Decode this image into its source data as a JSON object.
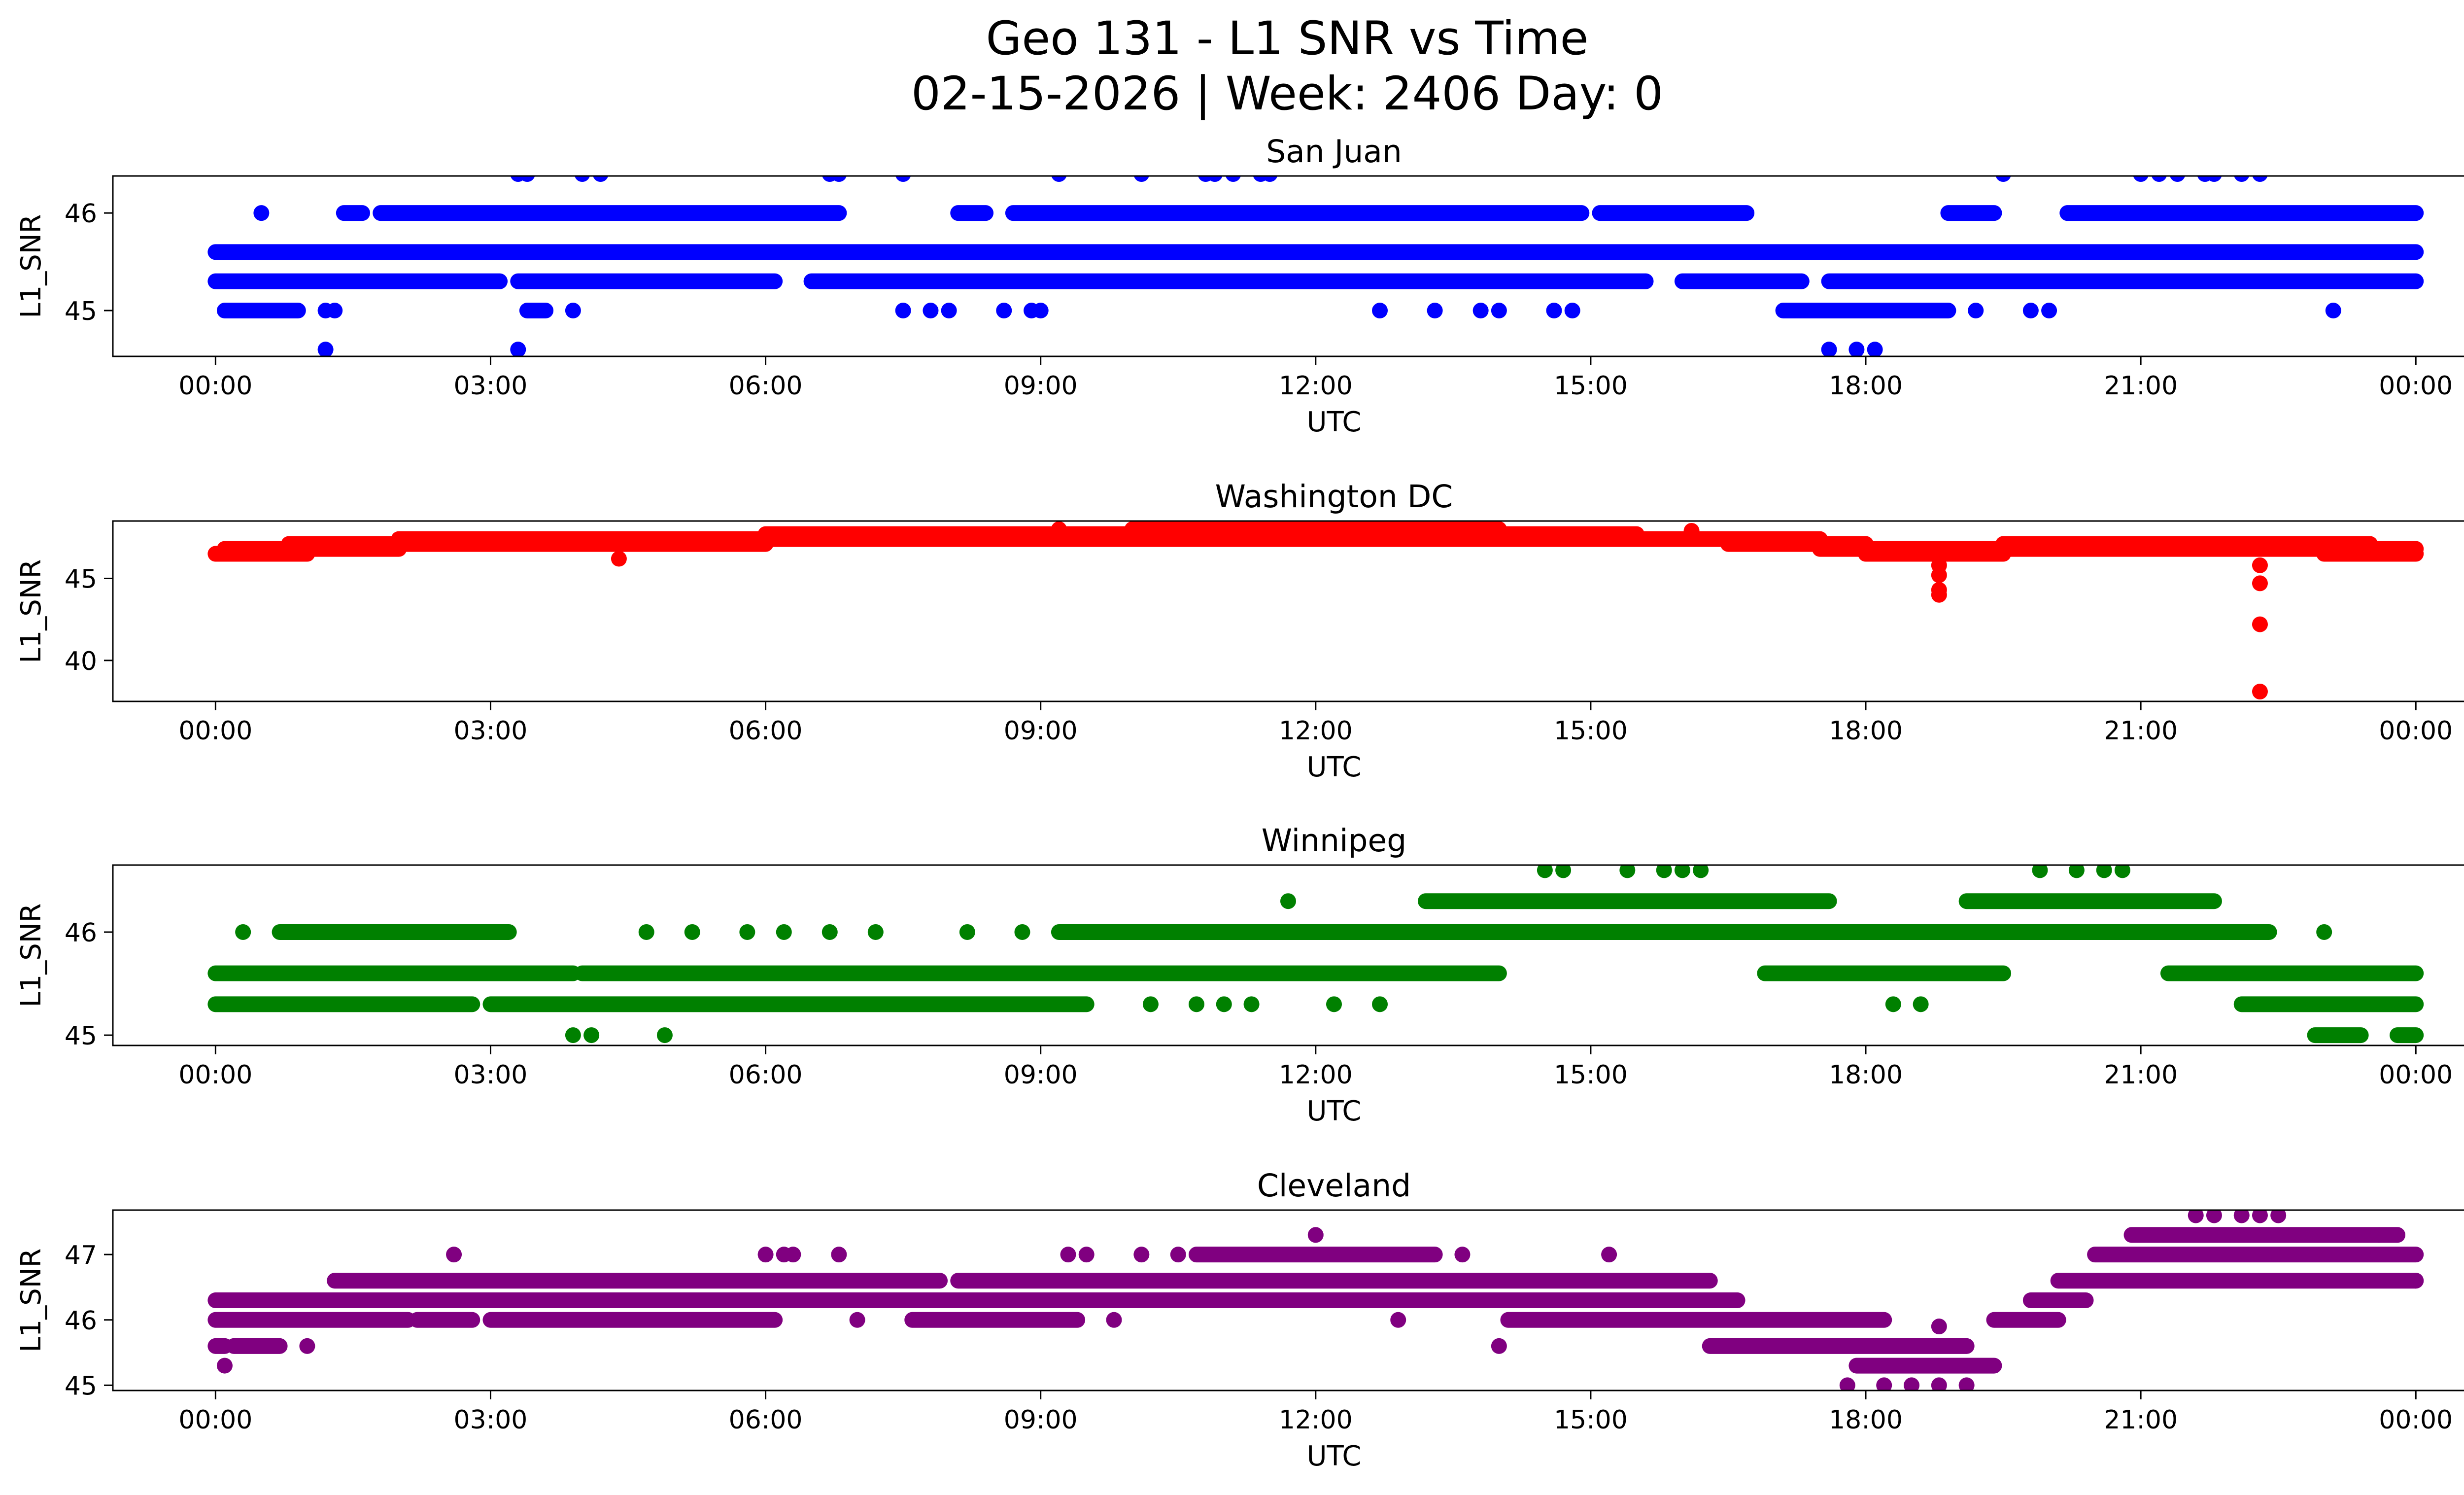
{
  "figure": {
    "title_line1": "Geo 131 - L1 SNR vs Time",
    "title_line2": "02-15-2026 | Week: 2406 Day: 0"
  },
  "chart_data": [
    {
      "type": "scatter",
      "title": "San Juan",
      "xlabel": "UTC",
      "ylabel": "L1_SNR",
      "color": "#0000ff",
      "xlim": [
        -1.12,
        25.52
      ],
      "ylim": [
        44.53,
        46.38
      ],
      "xticks": [
        0,
        3,
        6,
        9,
        12,
        15,
        18,
        21,
        24
      ],
      "xtick_labels": [
        "00:00",
        "03:00",
        "06:00",
        "09:00",
        "12:00",
        "15:00",
        "18:00",
        "21:00",
        "00:00"
      ],
      "yticks": [
        45,
        46
      ],
      "yticks_labels": [
        "45",
        "46"
      ],
      "bands": [
        {
          "y": 45.6,
          "segments": [
            [
              0,
              24
            ]
          ]
        },
        {
          "y": 45.3,
          "segments": [
            [
              0,
              3.1
            ],
            [
              3.3,
              6.1
            ],
            [
              6.5,
              15.6
            ],
            [
              16.0,
              17.3
            ],
            [
              17.6,
              24
            ]
          ]
        },
        {
          "y": 46.0,
          "segments": [
            [
              1.4,
              1.6
            ],
            [
              1.8,
              6.8
            ],
            [
              8.1,
              8.4
            ],
            [
              8.7,
              14.9
            ],
            [
              15.1,
              16.7
            ],
            [
              18.9,
              19.4
            ],
            [
              20.2,
              24
            ]
          ]
        },
        {
          "y": 45.0,
          "segments": [
            [
              0.1,
              0.9
            ],
            [
              3.4,
              3.6
            ],
            [
              17.1,
              18.9
            ]
          ]
        }
      ],
      "points": [
        {
          "x": 0.5,
          "y": 46.0
        },
        {
          "x": 1.2,
          "y": 45.0
        },
        {
          "x": 1.3,
          "y": 45.0
        },
        {
          "x": 1.2,
          "y": 44.6
        },
        {
          "x": 3.3,
          "y": 44.6
        },
        {
          "x": 3.3,
          "y": 46.4
        },
        {
          "x": 3.4,
          "y": 46.4
        },
        {
          "x": 3.9,
          "y": 45.0
        },
        {
          "x": 4.0,
          "y": 46.4
        },
        {
          "x": 4.2,
          "y": 46.4
        },
        {
          "x": 6.7,
          "y": 46.4
        },
        {
          "x": 6.8,
          "y": 46.4
        },
        {
          "x": 7.5,
          "y": 46.4
        },
        {
          "x": 7.5,
          "y": 45.0
        },
        {
          "x": 7.8,
          "y": 45.0
        },
        {
          "x": 8.0,
          "y": 45.0
        },
        {
          "x": 8.6,
          "y": 45.0
        },
        {
          "x": 8.9,
          "y": 45.0
        },
        {
          "x": 9.0,
          "y": 45.0
        },
        {
          "x": 9.2,
          "y": 46.4
        },
        {
          "x": 10.1,
          "y": 46.4
        },
        {
          "x": 10.8,
          "y": 46.4
        },
        {
          "x": 10.9,
          "y": 46.4
        },
        {
          "x": 11.1,
          "y": 46.4
        },
        {
          "x": 11.4,
          "y": 46.4
        },
        {
          "x": 11.5,
          "y": 46.4
        },
        {
          "x": 12.7,
          "y": 45.0
        },
        {
          "x": 13.3,
          "y": 45.0
        },
        {
          "x": 13.8,
          "y": 45.0
        },
        {
          "x": 14.0,
          "y": 45.0
        },
        {
          "x": 14.6,
          "y": 45.0
        },
        {
          "x": 14.8,
          "y": 45.0
        },
        {
          "x": 17.6,
          "y": 44.6
        },
        {
          "x": 17.9,
          "y": 44.6
        },
        {
          "x": 18.1,
          "y": 44.6
        },
        {
          "x": 19.2,
          "y": 45.0
        },
        {
          "x": 19.5,
          "y": 46.4
        },
        {
          "x": 19.8,
          "y": 45.0
        },
        {
          "x": 20.0,
          "y": 45.0
        },
        {
          "x": 21.0,
          "y": 46.4
        },
        {
          "x": 21.2,
          "y": 46.4
        },
        {
          "x": 21.4,
          "y": 46.4
        },
        {
          "x": 21.7,
          "y": 46.4
        },
        {
          "x": 21.8,
          "y": 46.4
        },
        {
          "x": 22.1,
          "y": 46.4
        },
        {
          "x": 22.3,
          "y": 46.4
        },
        {
          "x": 23.1,
          "y": 45.0
        }
      ]
    },
    {
      "type": "scatter",
      "title": "Washington DC",
      "xlabel": "UTC",
      "ylabel": "L1_SNR",
      "color": "#ff0000",
      "xlim": [
        -1.12,
        25.52
      ],
      "ylim": [
        37.5,
        48.5
      ],
      "xticks": [
        0,
        3,
        6,
        9,
        12,
        15,
        18,
        21,
        24
      ],
      "xtick_labels": [
        "00:00",
        "03:00",
        "06:00",
        "09:00",
        "12:00",
        "15:00",
        "18:00",
        "21:00",
        "00:00"
      ],
      "yticks": [
        40,
        45
      ],
      "yticks_labels": [
        "40",
        "45"
      ],
      "bands": [
        {
          "y": 46.5,
          "segments": [
            [
              0,
              1.0
            ]
          ]
        },
        {
          "y": 46.8,
          "segments": [
            [
              0.1,
              2.0
            ],
            [
              17.5,
              24
            ]
          ]
        },
        {
          "y": 47.1,
          "segments": [
            [
              0.8,
              6.0
            ],
            [
              16.5,
              18.0
            ],
            [
              19.5,
              23.5
            ]
          ]
        },
        {
          "y": 47.4,
          "segments": [
            [
              2.0,
              17.5
            ]
          ]
        },
        {
          "y": 47.7,
          "segments": [
            [
              6.0,
              15.5
            ]
          ]
        },
        {
          "y": 48.0,
          "segments": [
            [
              10.0,
              14.0
            ]
          ]
        },
        {
          "y": 46.5,
          "segments": [
            [
              18.0,
              19.5
            ],
            [
              23.0,
              24
            ]
          ]
        }
      ],
      "points": [
        {
          "x": 4.4,
          "y": 46.2
        },
        {
          "x": 18.8,
          "y": 45.8
        },
        {
          "x": 18.8,
          "y": 45.2
        },
        {
          "x": 18.8,
          "y": 44.3
        },
        {
          "x": 18.8,
          "y": 44.0
        },
        {
          "x": 22.3,
          "y": 45.8
        },
        {
          "x": 22.3,
          "y": 44.7
        },
        {
          "x": 22.3,
          "y": 42.2
        },
        {
          "x": 22.3,
          "y": 38.1
        },
        {
          "x": 12.5,
          "y": 48.2
        },
        {
          "x": 9.2,
          "y": 48.0
        },
        {
          "x": 16.1,
          "y": 47.9
        }
      ]
    },
    {
      "type": "scatter",
      "title": "Winnipeg",
      "xlabel": "UTC",
      "ylabel": "L1_SNR",
      "color": "#008000",
      "xlim": [
        -1.12,
        25.52
      ],
      "ylim": [
        44.9,
        46.65
      ],
      "xticks": [
        0,
        3,
        6,
        9,
        12,
        15,
        18,
        21,
        24
      ],
      "xtick_labels": [
        "00:00",
        "03:00",
        "06:00",
        "09:00",
        "12:00",
        "15:00",
        "18:00",
        "21:00",
        "00:00"
      ],
      "yticks": [
        45,
        46
      ],
      "yticks_labels": [
        "45",
        "46"
      ],
      "bands": [
        {
          "y": 45.6,
          "segments": [
            [
              0,
              3.9
            ],
            [
              4.0,
              14.0
            ],
            [
              16.9,
              19.5
            ],
            [
              21.3,
              24
            ]
          ]
        },
        {
          "y": 45.3,
          "segments": [
            [
              0,
              2.8
            ],
            [
              3.0,
              9.5
            ],
            [
              22.1,
              24
            ]
          ]
        },
        {
          "y": 46.0,
          "segments": [
            [
              0.7,
              3.2
            ],
            [
              9.2,
              22.4
            ]
          ]
        },
        {
          "y": 46.3,
          "segments": [
            [
              13.2,
              17.6
            ],
            [
              19.1,
              21.8
            ]
          ]
        },
        {
          "y": 45.0,
          "segments": [
            [
              22.9,
              23.4
            ],
            [
              23.8,
              24
            ]
          ]
        }
      ],
      "points": [
        {
          "x": 0.3,
          "y": 46.0
        },
        {
          "x": 3.9,
          "y": 45.0
        },
        {
          "x": 4.1,
          "y": 45.0
        },
        {
          "x": 4.9,
          "y": 45.0
        },
        {
          "x": 4.7,
          "y": 46.0
        },
        {
          "x": 5.2,
          "y": 46.0
        },
        {
          "x": 5.8,
          "y": 46.0
        },
        {
          "x": 6.2,
          "y": 46.0
        },
        {
          "x": 6.7,
          "y": 46.0
        },
        {
          "x": 7.2,
          "y": 46.0
        },
        {
          "x": 8.2,
          "y": 46.0
        },
        {
          "x": 8.8,
          "y": 46.0
        },
        {
          "x": 10.2,
          "y": 45.3
        },
        {
          "x": 10.7,
          "y": 45.3
        },
        {
          "x": 11.0,
          "y": 45.3
        },
        {
          "x": 11.3,
          "y": 45.3
        },
        {
          "x": 12.2,
          "y": 45.3
        },
        {
          "x": 12.7,
          "y": 45.3
        },
        {
          "x": 11.7,
          "y": 46.3
        },
        {
          "x": 14.5,
          "y": 46.6
        },
        {
          "x": 14.7,
          "y": 46.6
        },
        {
          "x": 15.4,
          "y": 46.6
        },
        {
          "x": 15.8,
          "y": 46.6
        },
        {
          "x": 16.0,
          "y": 46.6
        },
        {
          "x": 16.2,
          "y": 46.6
        },
        {
          "x": 18.3,
          "y": 45.3
        },
        {
          "x": 18.6,
          "y": 45.3
        },
        {
          "x": 19.9,
          "y": 46.6
        },
        {
          "x": 20.3,
          "y": 46.6
        },
        {
          "x": 20.6,
          "y": 46.6
        },
        {
          "x": 20.8,
          "y": 46.6
        },
        {
          "x": 23.0,
          "y": 46.0
        }
      ]
    },
    {
      "type": "scatter",
      "title": "Cleveland",
      "xlabel": "UTC",
      "ylabel": "L1_SNR",
      "color": "#800080",
      "xlim": [
        -1.12,
        25.52
      ],
      "ylim": [
        44.92,
        47.68
      ],
      "xticks": [
        0,
        3,
        6,
        9,
        12,
        15,
        18,
        21,
        24
      ],
      "xtick_labels": [
        "00:00",
        "03:00",
        "06:00",
        "09:00",
        "12:00",
        "15:00",
        "18:00",
        "21:00",
        "00:00"
      ],
      "yticks": [
        45,
        46,
        47
      ],
      "yticks_labels": [
        "45",
        "46",
        "47"
      ],
      "bands": [
        {
          "y": 45.6,
          "segments": [
            [
              0,
              0.1
            ],
            [
              0.2,
              0.7
            ],
            [
              16.3,
              19.1
            ]
          ]
        },
        {
          "y": 46.0,
          "segments": [
            [
              0,
              2.1
            ],
            [
              2.2,
              2.8
            ],
            [
              3.0,
              6.1
            ],
            [
              7.6,
              9.4
            ],
            [
              14.1,
              18.2
            ],
            [
              19.4,
              20.1
            ]
          ]
        },
        {
          "y": 46.3,
          "segments": [
            [
              0,
              16.6
            ],
            [
              19.8,
              20.4
            ]
          ]
        },
        {
          "y": 46.6,
          "segments": [
            [
              1.3,
              7.9
            ],
            [
              8.1,
              16.3
            ],
            [
              20.1,
              24
            ]
          ]
        },
        {
          "y": 47.0,
          "segments": [
            [
              10.7,
              13.3
            ],
            [
              20.5,
              24
            ]
          ]
        },
        {
          "y": 47.3,
          "segments": [
            [
              20.9,
              23.8
            ]
          ]
        },
        {
          "y": 45.3,
          "segments": [
            [
              17.9,
              19.4
            ]
          ]
        }
      ],
      "points": [
        {
          "x": 0.1,
          "y": 45.3
        },
        {
          "x": 1.0,
          "y": 45.6
        },
        {
          "x": 2.6,
          "y": 47.0
        },
        {
          "x": 6.0,
          "y": 47.0
        },
        {
          "x": 6.2,
          "y": 47.0
        },
        {
          "x": 6.3,
          "y": 47.0
        },
        {
          "x": 6.8,
          "y": 47.0
        },
        {
          "x": 7.0,
          "y": 46.0
        },
        {
          "x": 9.3,
          "y": 47.0
        },
        {
          "x": 9.5,
          "y": 47.0
        },
        {
          "x": 9.8,
          "y": 46.0
        },
        {
          "x": 10.1,
          "y": 47.0
        },
        {
          "x": 10.5,
          "y": 47.0
        },
        {
          "x": 12.0,
          "y": 47.3
        },
        {
          "x": 12.9,
          "y": 46.0
        },
        {
          "x": 13.6,
          "y": 47.0
        },
        {
          "x": 14.0,
          "y": 45.6
        },
        {
          "x": 15.2,
          "y": 47.0
        },
        {
          "x": 17.8,
          "y": 45.0
        },
        {
          "x": 18.2,
          "y": 45.0
        },
        {
          "x": 18.5,
          "y": 45.0
        },
        {
          "x": 18.8,
          "y": 45.0
        },
        {
          "x": 19.1,
          "y": 45.0
        },
        {
          "x": 18.8,
          "y": 45.9
        },
        {
          "x": 21.6,
          "y": 47.6
        },
        {
          "x": 21.8,
          "y": 47.6
        },
        {
          "x": 22.1,
          "y": 47.6
        },
        {
          "x": 22.3,
          "y": 47.6
        },
        {
          "x": 22.5,
          "y": 47.6
        },
        {
          "x": 23.6,
          "y": 47.3
        },
        {
          "x": 24.0,
          "y": 46.6
        }
      ]
    }
  ]
}
